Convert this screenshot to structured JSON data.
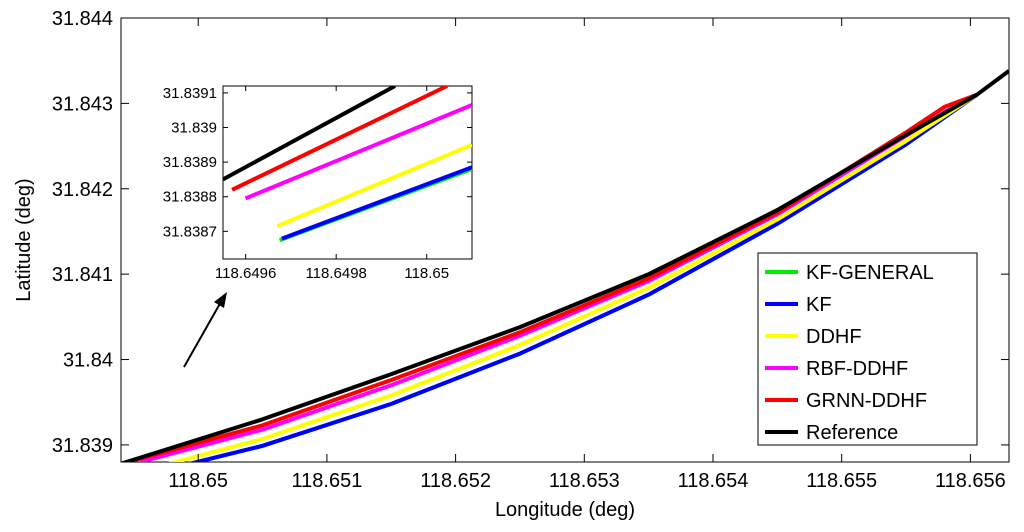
{
  "chart_data": [
    {
      "type": "line",
      "title": "",
      "xlabel": "Longitude (deg)",
      "ylabel": "Latitude (deg)",
      "xlim": [
        118.6494,
        118.6563
      ],
      "ylim": [
        31.8388,
        31.844
      ],
      "x_ticks": [
        "118.65",
        "118.651",
        "118.652",
        "118.653",
        "118.654",
        "118.655",
        "118.656"
      ],
      "y_ticks": [
        "31.839",
        "31.84",
        "31.841",
        "31.842",
        "31.843",
        "31.844"
      ],
      "legend_position": "bottom-right",
      "grid": false,
      "series": [
        {
          "name": "KF-GENERAL",
          "color": "#00ee00",
          "x": [
            118.64967,
            118.6505,
            118.6515,
            118.6525,
            118.6535,
            118.6545,
            118.6555,
            118.65605
          ],
          "y": [
            31.83868,
            31.83899,
            31.83948,
            31.84007,
            31.84076,
            31.84159,
            31.84252,
            31.8431
          ]
        },
        {
          "name": "KF",
          "color": "#0000ff",
          "x": [
            118.64967,
            118.6505,
            118.6515,
            118.6525,
            118.6535,
            118.6545,
            118.6555,
            118.65605
          ],
          "y": [
            31.83868,
            31.83899,
            31.83948,
            31.84007,
            31.84076,
            31.84159,
            31.84252,
            31.8431
          ]
        },
        {
          "name": "DDHF",
          "color": "#ffff00",
          "x": [
            118.64965,
            118.6505,
            118.6515,
            118.6525,
            118.6535,
            118.6545,
            118.6555,
            118.65605
          ],
          "y": [
            31.83873,
            31.83907,
            31.83958,
            31.84017,
            31.84084,
            31.84164,
            31.84256,
            31.8431
          ]
        },
        {
          "name": "RBF-DDHF",
          "color": "#ff00ff",
          "x": [
            118.64955,
            118.6505,
            118.6515,
            118.6525,
            118.6535,
            118.6545,
            118.6555,
            118.6558,
            118.65605
          ],
          "y": [
            31.8388,
            31.83918,
            31.8397,
            31.84028,
            31.84092,
            31.8417,
            31.84262,
            31.8429,
            31.8431
          ]
        },
        {
          "name": "GRNN-DDHF",
          "color": "#ff0000",
          "x": [
            118.6495,
            118.6505,
            118.6515,
            118.6525,
            118.6535,
            118.6545,
            118.6555,
            118.6558,
            118.65605
          ],
          "y": [
            31.83882,
            31.83923,
            31.83976,
            31.84032,
            31.84095,
            31.84172,
            31.84266,
            31.84296,
            31.8431
          ]
        },
        {
          "name": "Reference",
          "color": "#000000",
          "x": [
            118.6494,
            118.6505,
            118.6515,
            118.6525,
            118.6535,
            118.6545,
            118.6555,
            118.65605,
            118.6563
          ],
          "y": [
            31.83878,
            31.8393,
            31.83983,
            31.84038,
            31.841,
            31.84175,
            31.84263,
            31.8431,
            31.84338
          ]
        }
      ]
    },
    {
      "type": "line",
      "title": "",
      "xlabel": "",
      "ylabel": "",
      "xlim": [
        118.64955,
        118.6501
      ],
      "ylim": [
        31.83862,
        31.83912
      ],
      "x_ticks": [
        "118.6496",
        "118.6498",
        "118.65"
      ],
      "y_ticks": [
        "31.8391",
        "31.839",
        "31.8389",
        "31.8388",
        "31.8387"
      ],
      "grid": false,
      "series": [
        {
          "name": "KF-GENERAL",
          "color": "#00ee00",
          "x": [
            118.649675,
            118.6501
          ],
          "y": [
            31.838674,
            31.83888
          ]
        },
        {
          "name": "KF",
          "color": "#0000ff",
          "x": [
            118.64968,
            118.6501
          ],
          "y": [
            31.838679,
            31.838885
          ]
        },
        {
          "name": "DDHF",
          "color": "#ffff00",
          "x": [
            118.64967,
            118.6501
          ],
          "y": [
            31.838715,
            31.83895
          ]
        },
        {
          "name": "RBF-DDHF",
          "color": "#ff00ff",
          "x": [
            118.6496,
            118.6501
          ],
          "y": [
            31.838795,
            31.839065
          ]
        },
        {
          "name": "GRNN-DDHF",
          "color": "#ff0000",
          "x": [
            118.64957,
            118.650045
          ],
          "y": [
            31.83882,
            31.83912
          ]
        },
        {
          "name": "Reference",
          "color": "#000000",
          "x": [
            118.64955,
            118.64993
          ],
          "y": [
            31.83885,
            31.83912
          ]
        }
      ]
    }
  ],
  "legend": {
    "items": [
      {
        "label": "KF-GENERAL",
        "color": "#00ee00"
      },
      {
        "label": "KF",
        "color": "#0000ff"
      },
      {
        "label": "DDHF",
        "color": "#ffff00"
      },
      {
        "label": "RBF-DDHF",
        "color": "#ff00ff"
      },
      {
        "label": "GRNN-DDHF",
        "color": "#ff0000"
      },
      {
        "label": "Reference",
        "color": "#000000"
      }
    ]
  },
  "annotation": {
    "icon": "arrow-icon"
  }
}
